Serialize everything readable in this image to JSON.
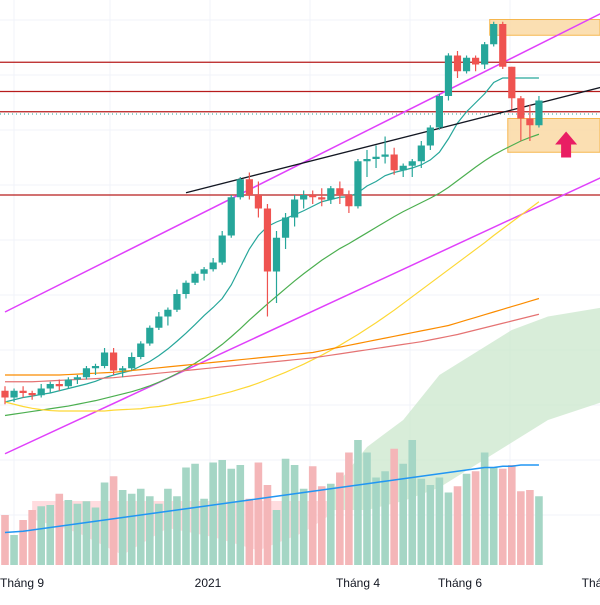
{
  "colors": {
    "background": "#ffffff",
    "grid": "#f0f3fa",
    "up": "#26a69a",
    "down": "#ef5350",
    "volume_up": "#a5d6c5",
    "volume_down": "#f4b6b8",
    "channel": "#e040fb",
    "horizontal": "#b71c1c",
    "dotted": "#26a69a",
    "trendline": "#131722",
    "zone_fill": "#fbd8a0",
    "zone_stroke": "#f5a623",
    "arrow": "#e91e63",
    "ichimoku_green": "#c8e6c9",
    "ichimoku_red": "#ffcdd2",
    "ma_fast": "#26a69a",
    "ma_slow": "#4caf50",
    "ma_yellow": "#fdd835",
    "ma_orange": "#fb8c00",
    "ma_red": "#e57373",
    "volume_ma": "#2196f3"
  },
  "icons": {
    "signal": "up-arrow-icon"
  },
  "chart_data": {
    "type": "candlestick",
    "x_tick_labels": [
      "Tháng 9",
      "2021",
      "Tháng 4",
      "Tháng 6",
      "Thá"
    ],
    "ylim": [
      0,
      100
    ],
    "candles": [
      [
        16.5,
        17.5,
        13.5,
        15.0
      ],
      [
        15.0,
        17.0,
        14.0,
        16.5
      ],
      [
        16.5,
        17.5,
        15.0,
        16.0
      ],
      [
        16.0,
        16.5,
        14.5,
        15.5
      ],
      [
        15.5,
        18.0,
        15.0,
        17.0
      ],
      [
        17.0,
        18.5,
        16.0,
        18.0
      ],
      [
        18.0,
        19.0,
        16.5,
        17.5
      ],
      [
        17.5,
        19.5,
        17.0,
        19.0
      ],
      [
        19.0,
        20.0,
        18.0,
        19.5
      ],
      [
        19.5,
        22.0,
        19.0,
        21.5
      ],
      [
        21.5,
        22.5,
        20.0,
        22.0
      ],
      [
        22.0,
        26.0,
        21.5,
        25.0
      ],
      [
        25.0,
        26.0,
        20.0,
        21.0
      ],
      [
        21.0,
        22.0,
        19.5,
        21.5
      ],
      [
        21.5,
        25.0,
        21.0,
        24.0
      ],
      [
        24.0,
        27.5,
        23.5,
        27.0
      ],
      [
        27.0,
        31.0,
        26.5,
        30.5
      ],
      [
        30.5,
        34.0,
        30.0,
        33.0
      ],
      [
        33.0,
        35.0,
        31.0,
        34.5
      ],
      [
        34.5,
        39.0,
        34.0,
        38.0
      ],
      [
        38.0,
        41.0,
        37.0,
        40.5
      ],
      [
        40.5,
        43.0,
        40.0,
        42.5
      ],
      [
        42.5,
        44.0,
        41.0,
        43.5
      ],
      [
        43.5,
        46.0,
        43.0,
        45.0
      ],
      [
        45.0,
        52.0,
        44.5,
        51.0
      ],
      [
        51.0,
        60.0,
        50.5,
        59.5
      ],
      [
        59.5,
        64.0,
        59.0,
        63.5
      ],
      [
        63.5,
        65.0,
        59.0,
        60.0
      ],
      [
        60.0,
        63.0,
        55.0,
        57.0
      ],
      [
        57.0,
        58.0,
        33.0,
        43.0
      ],
      [
        43.0,
        52.0,
        36.0,
        50.5
      ],
      [
        50.5,
        56.0,
        48.0,
        55.0
      ],
      [
        55.0,
        60.0,
        53.0,
        59.0
      ],
      [
        59.0,
        61.0,
        57.0,
        60.0
      ],
      [
        60.0,
        61.0,
        58.0,
        59.5
      ],
      [
        59.5,
        61.5,
        57.5,
        59.0
      ],
      [
        59.0,
        62.0,
        58.0,
        61.5
      ],
      [
        61.5,
        63.0,
        58.0,
        60.0
      ],
      [
        60.0,
        61.0,
        56.0,
        57.5
      ],
      [
        57.5,
        68.0,
        57.0,
        67.5
      ],
      [
        67.5,
        70.0,
        64.0,
        68.0
      ],
      [
        68.0,
        71.0,
        66.0,
        68.5
      ],
      [
        68.5,
        73.0,
        67.0,
        69.0
      ],
      [
        69.0,
        70.5,
        64.5,
        65.5
      ],
      [
        65.5,
        67.0,
        64.0,
        66.5
      ],
      [
        66.5,
        68.0,
        64.0,
        67.5
      ],
      [
        67.5,
        72.0,
        66.0,
        71.0
      ],
      [
        71.0,
        75.5,
        70.0,
        75.0
      ],
      [
        75.0,
        82.5,
        74.5,
        82.0
      ],
      [
        82.0,
        91.5,
        81.0,
        91.0
      ],
      [
        91.0,
        92.0,
        86.0,
        87.5
      ],
      [
        87.5,
        91.0,
        87.0,
        90.5
      ],
      [
        90.5,
        91.0,
        87.5,
        89.0
      ],
      [
        89.0,
        94.0,
        88.0,
        93.5
      ],
      [
        93.5,
        98.5,
        93.0,
        98.0
      ],
      [
        98.0,
        98.5,
        88.0,
        88.5
      ],
      [
        88.5,
        88.5,
        79.0,
        81.5
      ],
      [
        81.5,
        82.0,
        72.0,
        77.0
      ],
      [
        77.0,
        80.0,
        72.0,
        75.5
      ],
      [
        75.5,
        82.0,
        75.0,
        81.0
      ]
    ],
    "volume": [
      40,
      24,
      36,
      44,
      47,
      48,
      57,
      52,
      49,
      51,
      46,
      66,
      71,
      60,
      57,
      61,
      55,
      49,
      61,
      55,
      78,
      81,
      53,
      82,
      84,
      77,
      80,
      53,
      82,
      64,
      44,
      85,
      80,
      61,
      79,
      63,
      65,
      74,
      90,
      100,
      90,
      70,
      75,
      93,
      81,
      100,
      69,
      64,
      70,
      58,
      63,
      73,
      75,
      90,
      78,
      77,
      80,
      59,
      60,
      55
    ],
    "volume_ma": [
      26,
      26.5,
      27,
      28,
      29,
      30,
      31,
      32,
      33,
      34,
      35,
      36,
      37,
      38,
      39,
      40,
      41,
      42,
      43,
      44,
      45,
      46,
      47,
      48,
      49,
      50,
      51,
      52,
      53,
      54,
      55,
      56,
      57,
      58,
      59,
      60,
      61,
      62,
      63,
      64,
      65,
      66,
      67,
      68,
      69,
      70,
      71,
      72,
      73,
      74,
      75,
      76,
      77,
      78,
      78,
      79,
      79,
      80,
      80,
      80
    ],
    "moving_averages": [
      {
        "color": "ma_fast",
        "values": [
          14,
          14.5,
          15,
          15.3,
          15.7,
          16,
          16.5,
          17,
          17.5,
          18,
          18.6,
          19.4,
          20,
          20.5,
          21,
          22,
          23,
          24.3,
          25.8,
          27.5,
          29.3,
          31.2,
          33.2,
          35,
          37,
          40,
          44,
          48,
          51,
          53,
          54,
          54.8,
          55.6,
          56.5,
          57.5,
          58.5,
          59,
          59.5,
          59.6,
          60.5,
          62,
          63,
          64.3,
          65,
          65.5,
          66,
          66.7,
          67.8,
          69.5,
          72.5,
          76,
          78.5,
          80.5,
          82.5,
          85,
          86,
          86,
          86,
          86,
          86
        ]
      },
      {
        "color": "ma_slow",
        "values": [
          11,
          11.3,
          11.6,
          11.9,
          12.2,
          12.5,
          12.8,
          13.1,
          13.5,
          13.9,
          14.3,
          14.8,
          15.3,
          15.8,
          16.3,
          16.9,
          17.6,
          18.4,
          19.3,
          20.3,
          21.4,
          22.6,
          23.9,
          25.3,
          26.8,
          28.5,
          30.3,
          32.2,
          34,
          35.8,
          37.5,
          39.2,
          40.9,
          42.5,
          44,
          45.5,
          46.8,
          48.1,
          49.2,
          50.4,
          51.6,
          52.8,
          54,
          55.2,
          56.3,
          57.3,
          58.3,
          59.3,
          60.4,
          61.7,
          63.2,
          64.7,
          66.2,
          67.6,
          68.9,
          70,
          71,
          72,
          72.8,
          73.5
        ]
      },
      {
        "color": "ma_yellow",
        "values": [
          14,
          13.5,
          13,
          12.6,
          12.3,
          12.1,
          12,
          12,
          12,
          12,
          12,
          12,
          12.2,
          12.3,
          12.4,
          12.5,
          12.8,
          13,
          13.3,
          13.7,
          14,
          14.4,
          14.8,
          15.3,
          15.8,
          16.3,
          16.9,
          17.5,
          18.2,
          19,
          19.8,
          20.6,
          21.5,
          22.4,
          23.4,
          24.4,
          25.5,
          26.6,
          27.8,
          29,
          30.3,
          31.6,
          33,
          34.4,
          35.9,
          37.4,
          38.9,
          40.4,
          41.9,
          43.4,
          44.9,
          46.4,
          47.9,
          49.4,
          51,
          52.5,
          54,
          55.5,
          57,
          58.5
        ]
      },
      {
        "color": "ma_orange",
        "values": [
          20,
          20,
          20,
          20,
          20,
          20,
          20,
          20.1,
          20.2,
          20.3,
          20.4,
          20.5,
          20.6,
          20.8,
          21,
          21.2,
          21.4,
          21.6,
          21.8,
          22,
          22.2,
          22.4,
          22.6,
          22.8,
          23,
          23.2,
          23.4,
          23.6,
          23.8,
          24,
          24.2,
          24.4,
          24.6,
          24.8,
          25,
          25.4,
          25.8,
          26.2,
          26.6,
          27,
          27.4,
          27.8,
          28.2,
          28.6,
          29,
          29.4,
          29.8,
          30.2,
          30.6,
          31,
          31.6,
          32.2,
          32.8,
          33.4,
          34,
          34.6,
          35.2,
          35.8,
          36.4,
          37
        ]
      },
      {
        "color": "ma_red",
        "values": [
          18.5,
          18.5,
          18.5,
          18.5,
          18.6,
          18.7,
          18.8,
          18.9,
          19,
          19.1,
          19.2,
          19.3,
          19.4,
          19.6,
          19.8,
          20,
          20.2,
          20.4,
          20.6,
          20.8,
          21,
          21.2,
          21.4,
          21.6,
          21.8,
          22,
          22.2,
          22.4,
          22.6,
          22.8,
          23,
          23.2,
          23.4,
          23.6,
          23.8,
          24.1,
          24.4,
          24.7,
          25,
          25.3,
          25.6,
          25.9,
          26.2,
          26.5,
          26.8,
          27.1,
          27.4,
          27.8,
          28.2,
          28.6,
          29,
          29.5,
          30,
          30.5,
          31,
          31.5,
          32,
          32.5,
          33,
          33.5
        ]
      }
    ],
    "horizontal_levels": [
      89.5,
      83.0,
      78.5,
      60.0
    ],
    "dotted_level": 78.0,
    "channel_lines": [
      {
        "from": [
          0,
          34.0
        ],
        "to": [
          66,
          100.5
        ]
      },
      {
        "from": [
          0,
          2.5
        ],
        "to": [
          66,
          64.0
        ]
      }
    ],
    "trendline": {
      "from": [
        20,
        60.5
      ],
      "to": [
        66,
        84.0
      ]
    },
    "zones": [
      {
        "from_index": 54,
        "price_top": 99.0,
        "price_bottom": 95.5
      },
      {
        "from_index": 56,
        "price_top": 77.0,
        "price_bottom": 69.5
      }
    ],
    "signal_arrow": {
      "index": 62,
      "price": 71.0
    },
    "ichimoku_cloud": {
      "green_top": [
        [
          36,
          -6
        ],
        [
          40,
          4
        ],
        [
          44,
          10
        ],
        [
          48,
          20
        ],
        [
          52,
          25
        ],
        [
          56,
          30
        ],
        [
          60,
          33
        ],
        [
          66,
          35
        ]
      ],
      "green_bottom": [
        [
          36,
          -10
        ],
        [
          40,
          -10
        ],
        [
          44,
          -8
        ],
        [
          48,
          -5
        ],
        [
          52,
          0
        ],
        [
          56,
          5
        ],
        [
          60,
          10
        ],
        [
          66,
          14
        ]
      ],
      "red": [
        [
          3,
          -12
        ],
        [
          8,
          -15
        ],
        [
          13,
          -20
        ],
        [
          18,
          -14
        ],
        [
          23,
          -16
        ],
        [
          28,
          -19
        ],
        [
          33,
          -15
        ],
        [
          36,
          -11
        ]
      ]
    }
  }
}
